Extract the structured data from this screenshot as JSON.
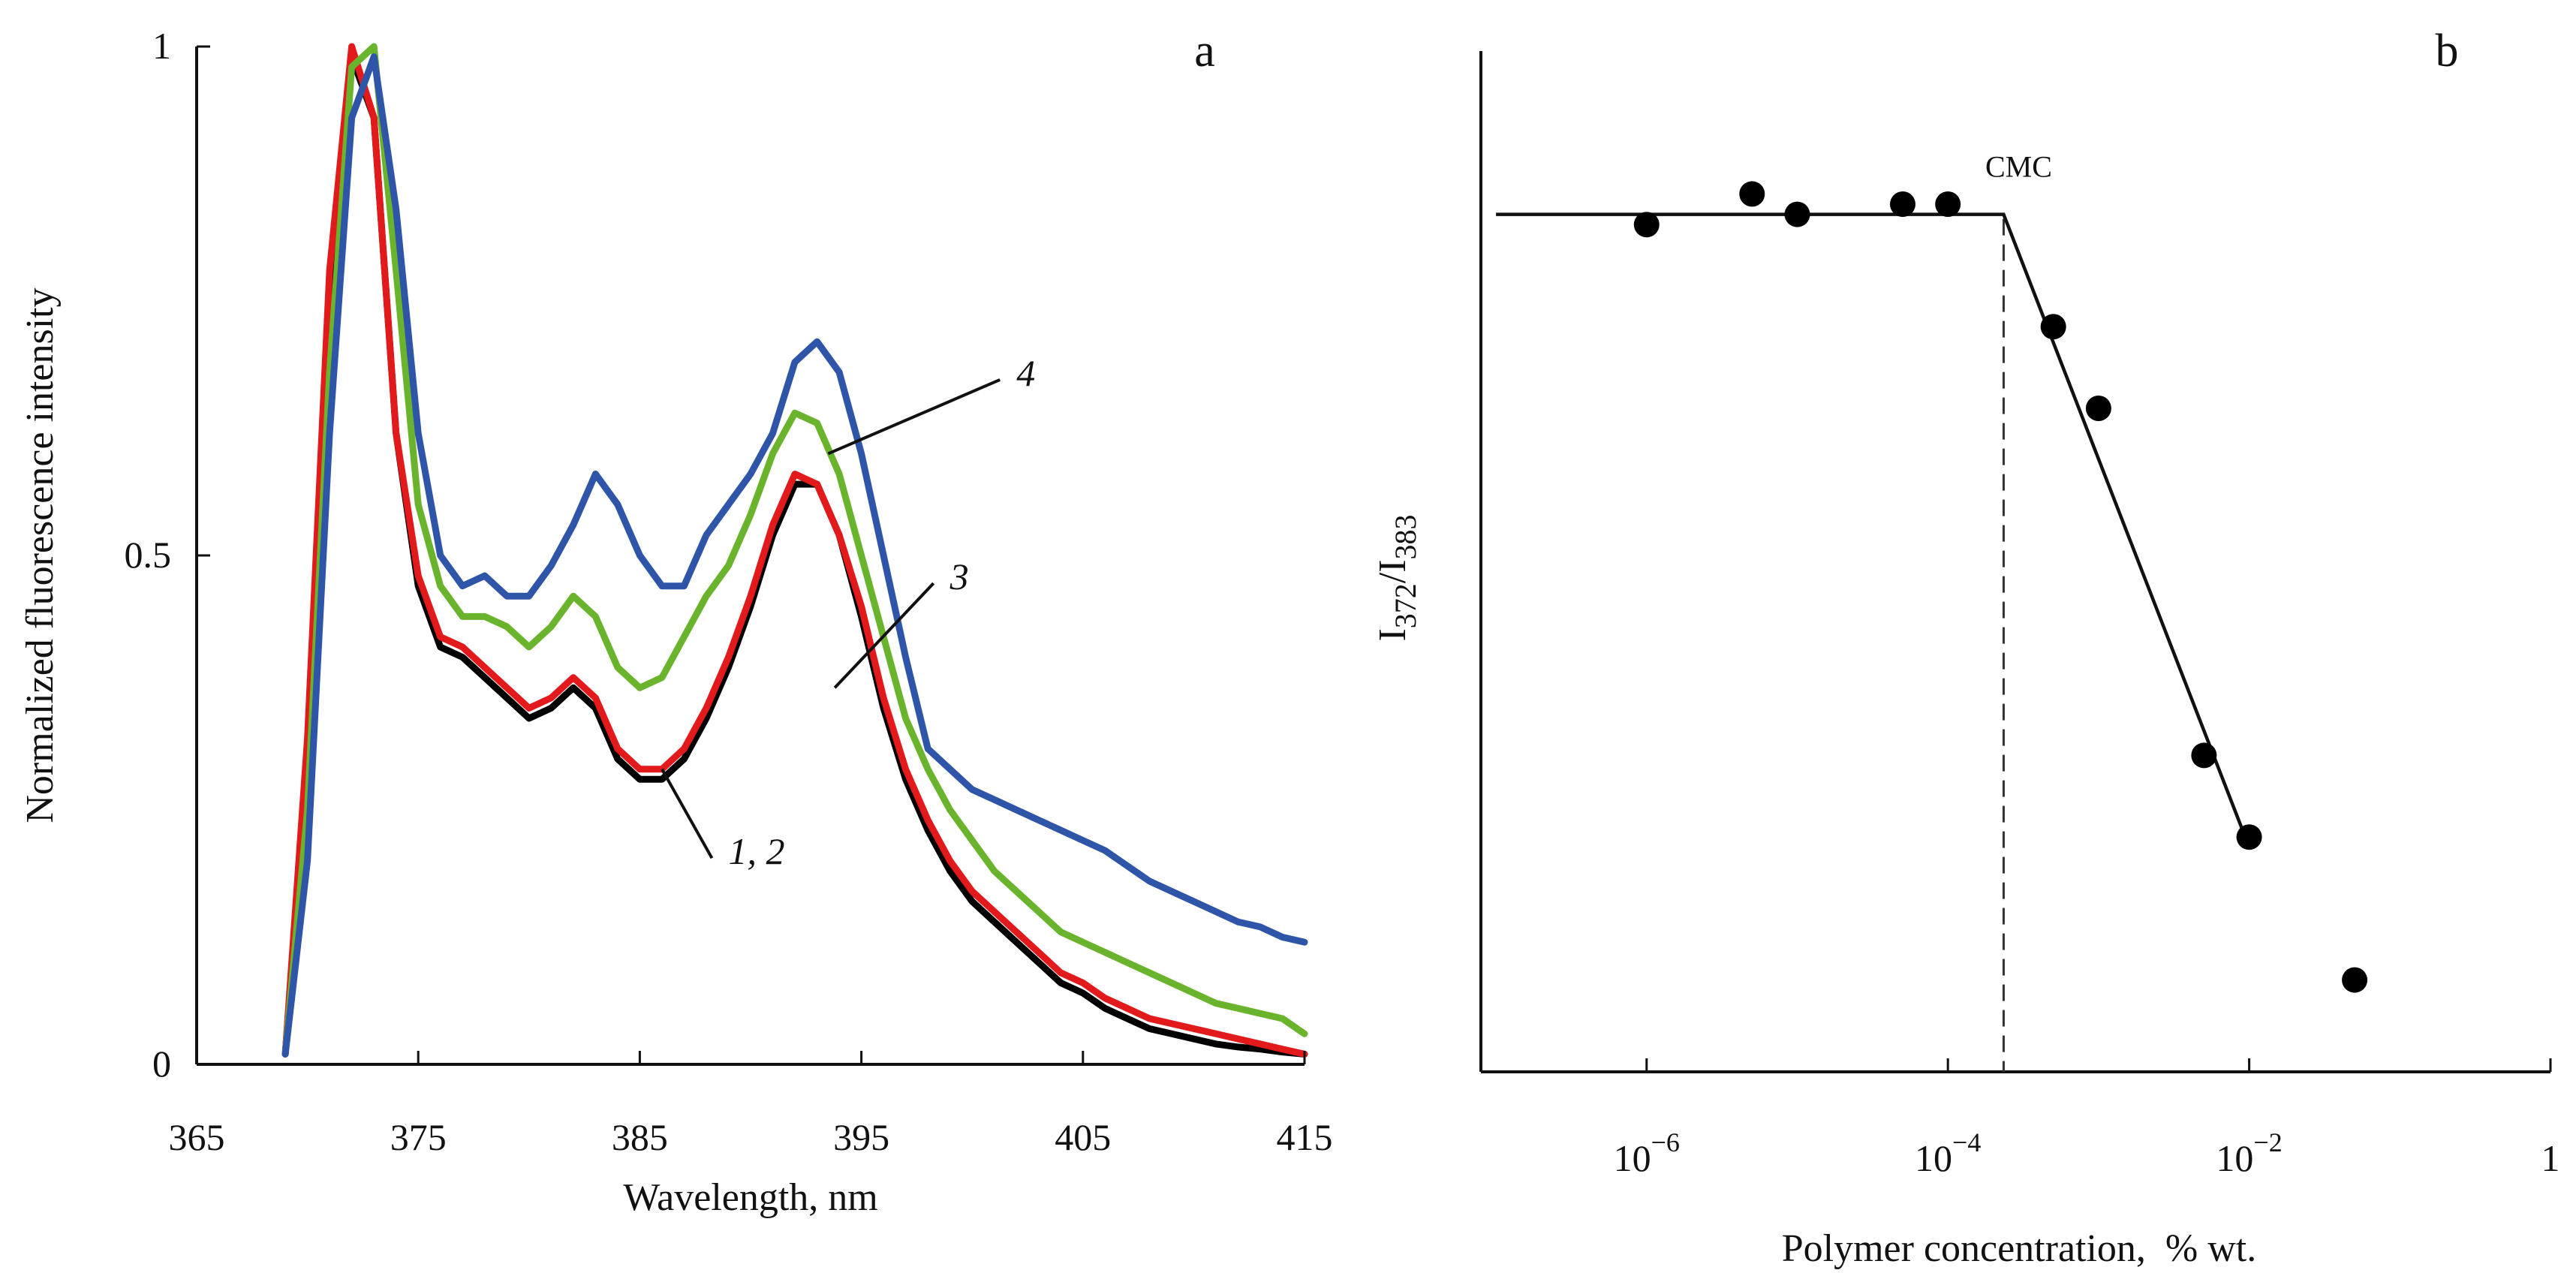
{
  "chart_data": [
    {
      "panel": "a",
      "type": "line",
      "xlabel": "Wavelength, nm",
      "ylabel": "Normalized fluorescence intensity",
      "xlim": [
        365,
        415
      ],
      "ylim": [
        0,
        1
      ],
      "x_ticks": [
        365,
        375,
        385,
        395,
        405,
        415
      ],
      "y_ticks": [
        {
          "value": 0,
          "label": "0"
        },
        {
          "value": 0.5,
          "label": "0.5"
        },
        {
          "value": 1,
          "label": "1"
        }
      ],
      "series": [
        {
          "name": "1",
          "color": "#000000",
          "points": [
            [
              369,
              0.01
            ],
            [
              370,
              0.3
            ],
            [
              371,
              0.75
            ],
            [
              372,
              0.99
            ],
            [
              373,
              0.93
            ],
            [
              374,
              0.62
            ],
            [
              375,
              0.47
            ],
            [
              376,
              0.41
            ],
            [
              377,
              0.4
            ],
            [
              378,
              0.38
            ],
            [
              379,
              0.36
            ],
            [
              380,
              0.34
            ],
            [
              381,
              0.35
            ],
            [
              382,
              0.37
            ],
            [
              383,
              0.35
            ],
            [
              384,
              0.3
            ],
            [
              385,
              0.28
            ],
            [
              386,
              0.28
            ],
            [
              387,
              0.3
            ],
            [
              388,
              0.34
            ],
            [
              389,
              0.39
            ],
            [
              390,
              0.45
            ],
            [
              391,
              0.52
            ],
            [
              392,
              0.57
            ],
            [
              393,
              0.57
            ],
            [
              394,
              0.52
            ],
            [
              395,
              0.44
            ],
            [
              396,
              0.35
            ],
            [
              397,
              0.28
            ],
            [
              398,
              0.23
            ],
            [
              399,
              0.19
            ],
            [
              400,
              0.16
            ],
            [
              401,
              0.14
            ],
            [
              402,
              0.12
            ],
            [
              403,
              0.1
            ],
            [
              404,
              0.08
            ],
            [
              405,
              0.07
            ],
            [
              406,
              0.055
            ],
            [
              407,
              0.045
            ],
            [
              408,
              0.035
            ],
            [
              409,
              0.03
            ],
            [
              410,
              0.025
            ],
            [
              411,
              0.02
            ],
            [
              412,
              0.017
            ],
            [
              413,
              0.015
            ],
            [
              414,
              0.012
            ],
            [
              415,
              0.01
            ]
          ]
        },
        {
          "name": "2",
          "color": "#e31a1c",
          "points": [
            [
              369,
              0.01
            ],
            [
              370,
              0.32
            ],
            [
              371,
              0.78
            ],
            [
              372,
              1.0
            ],
            [
              373,
              0.93
            ],
            [
              374,
              0.62
            ],
            [
              375,
              0.48
            ],
            [
              376,
              0.42
            ],
            [
              377,
              0.41
            ],
            [
              378,
              0.39
            ],
            [
              379,
              0.37
            ],
            [
              380,
              0.35
            ],
            [
              381,
              0.36
            ],
            [
              382,
              0.38
            ],
            [
              383,
              0.36
            ],
            [
              384,
              0.31
            ],
            [
              385,
              0.29
            ],
            [
              386,
              0.29
            ],
            [
              387,
              0.31
            ],
            [
              388,
              0.35
            ],
            [
              389,
              0.4
            ],
            [
              390,
              0.46
            ],
            [
              391,
              0.53
            ],
            [
              392,
              0.58
            ],
            [
              393,
              0.57
            ],
            [
              394,
              0.52
            ],
            [
              395,
              0.45
            ],
            [
              396,
              0.36
            ],
            [
              397,
              0.29
            ],
            [
              398,
              0.24
            ],
            [
              399,
              0.2
            ],
            [
              400,
              0.17
            ],
            [
              401,
              0.15
            ],
            [
              402,
              0.13
            ],
            [
              403,
              0.11
            ],
            [
              404,
              0.09
            ],
            [
              405,
              0.08
            ],
            [
              406,
              0.065
            ],
            [
              407,
              0.055
            ],
            [
              408,
              0.045
            ],
            [
              409,
              0.04
            ],
            [
              410,
              0.035
            ],
            [
              411,
              0.03
            ],
            [
              412,
              0.025
            ],
            [
              413,
              0.02
            ],
            [
              414,
              0.015
            ],
            [
              415,
              0.01
            ]
          ]
        },
        {
          "name": "3",
          "color": "#6ab42d",
          "points": [
            [
              369,
              0.01
            ],
            [
              370,
              0.25
            ],
            [
              371,
              0.68
            ],
            [
              372,
              0.98
            ],
            [
              373,
              1.0
            ],
            [
              374,
              0.78
            ],
            [
              375,
              0.55
            ],
            [
              376,
              0.47
            ],
            [
              377,
              0.44
            ],
            [
              378,
              0.44
            ],
            [
              379,
              0.43
            ],
            [
              380,
              0.41
            ],
            [
              381,
              0.43
            ],
            [
              382,
              0.46
            ],
            [
              383,
              0.44
            ],
            [
              384,
              0.39
            ],
            [
              385,
              0.37
            ],
            [
              386,
              0.38
            ],
            [
              387,
              0.42
            ],
            [
              388,
              0.46
            ],
            [
              389,
              0.49
            ],
            [
              390,
              0.54
            ],
            [
              391,
              0.6
            ],
            [
              392,
              0.64
            ],
            [
              393,
              0.63
            ],
            [
              394,
              0.58
            ],
            [
              395,
              0.5
            ],
            [
              396,
              0.42
            ],
            [
              397,
              0.34
            ],
            [
              398,
              0.29
            ],
            [
              399,
              0.25
            ],
            [
              400,
              0.22
            ],
            [
              401,
              0.19
            ],
            [
              402,
              0.17
            ],
            [
              403,
              0.15
            ],
            [
              404,
              0.13
            ],
            [
              405,
              0.12
            ],
            [
              406,
              0.11
            ],
            [
              407,
              0.1
            ],
            [
              408,
              0.09
            ],
            [
              409,
              0.08
            ],
            [
              410,
              0.07
            ],
            [
              411,
              0.06
            ],
            [
              412,
              0.055
            ],
            [
              413,
              0.05
            ],
            [
              414,
              0.045
            ],
            [
              415,
              0.03
            ]
          ]
        },
        {
          "name": "4",
          "color": "#2e55a8",
          "points": [
            [
              369,
              0.01
            ],
            [
              370,
              0.2
            ],
            [
              371,
              0.62
            ],
            [
              372,
              0.93
            ],
            [
              373,
              0.99
            ],
            [
              374,
              0.84
            ],
            [
              375,
              0.62
            ],
            [
              376,
              0.5
            ],
            [
              377,
              0.47
            ],
            [
              378,
              0.48
            ],
            [
              379,
              0.46
            ],
            [
              380,
              0.46
            ],
            [
              381,
              0.49
            ],
            [
              382,
              0.53
            ],
            [
              383,
              0.58
            ],
            [
              384,
              0.55
            ],
            [
              385,
              0.5
            ],
            [
              386,
              0.47
            ],
            [
              387,
              0.47
            ],
            [
              388,
              0.52
            ],
            [
              389,
              0.55
            ],
            [
              390,
              0.58
            ],
            [
              391,
              0.62
            ],
            [
              392,
              0.69
            ],
            [
              393,
              0.71
            ],
            [
              394,
              0.68
            ],
            [
              395,
              0.6
            ],
            [
              396,
              0.5
            ],
            [
              397,
              0.4
            ],
            [
              398,
              0.31
            ],
            [
              399,
              0.29
            ],
            [
              400,
              0.27
            ],
            [
              401,
              0.26
            ],
            [
              402,
              0.25
            ],
            [
              403,
              0.24
            ],
            [
              404,
              0.23
            ],
            [
              405,
              0.22
            ],
            [
              406,
              0.21
            ],
            [
              407,
              0.195
            ],
            [
              408,
              0.18
            ],
            [
              409,
              0.17
            ],
            [
              410,
              0.16
            ],
            [
              411,
              0.15
            ],
            [
              412,
              0.14
            ],
            [
              413,
              0.135
            ],
            [
              414,
              0.125
            ],
            [
              415,
              0.12
            ]
          ]
        }
      ],
      "annotations": [
        {
          "text": "4",
          "label_at": [
            402,
            0.68
          ],
          "points_to": [
            393.5,
            0.6
          ]
        },
        {
          "text": "3",
          "label_at": [
            399,
            0.48
          ],
          "points_to": [
            393.8,
            0.37
          ]
        },
        {
          "text": "1, 2",
          "label_at": [
            389,
            0.21
          ],
          "points_to": [
            386,
            0.29
          ]
        }
      ]
    },
    {
      "panel": "b",
      "type": "scatter",
      "xlabel": "Polymer concentration,  % wt.",
      "ylabel_main": "I",
      "ylabel_sub1": "372",
      "ylabel_sep": "/I",
      "ylabel_sub2": "383",
      "x_scale": "log",
      "xlim_log10": [
        -7.1,
        0
      ],
      "x_ticks": [
        {
          "log10": -6,
          "base": "10",
          "exp": "−6"
        },
        {
          "log10": -4,
          "base": "10",
          "exp": "−4"
        },
        {
          "log10": -2,
          "base": "10",
          "exp": "−2"
        },
        {
          "log10": 0,
          "base": "1",
          "exp": ""
        }
      ],
      "ylim": [
        0,
        1
      ],
      "points_log10x": [
        [
          -6.0,
          0.83
        ],
        [
          -5.3,
          0.86
        ],
        [
          -5.0,
          0.84
        ],
        [
          -4.3,
          0.85
        ],
        [
          -4.0,
          0.85
        ],
        [
          -3.3,
          0.73
        ],
        [
          -3.0,
          0.65
        ],
        [
          -2.3,
          0.31
        ],
        [
          -2.0,
          0.23
        ],
        [
          -1.3,
          0.09
        ]
      ],
      "fit_line_log10x": [
        [
          -7.0,
          0.84
        ],
        [
          -3.63,
          0.84
        ],
        [
          -2.0,
          0.22
        ]
      ],
      "cmc": {
        "label": "CMC",
        "log10x": -3.63
      }
    }
  ]
}
